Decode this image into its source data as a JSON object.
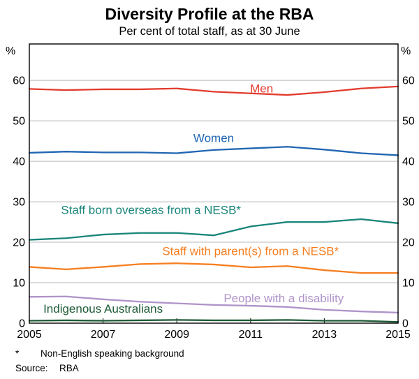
{
  "header": {
    "title": "Diversity Profile at the RBA",
    "subtitle": "Per cent of total staff, as at 30 June"
  },
  "footnotes": [
    {
      "marker": "*",
      "text": "Non-English speaking background"
    },
    {
      "marker": "Source:",
      "text": "RBA"
    }
  ],
  "chart_data": {
    "type": "line",
    "title": "Diversity Profile at the RBA",
    "subtitle": "Per cent of total staff, as at 30 June",
    "unit": "%",
    "grid": true,
    "legend_position": "inline-labels",
    "x": [
      2005,
      2006,
      2007,
      2008,
      2009,
      2010,
      2011,
      2012,
      2013,
      2014,
      2015
    ],
    "xlim": [
      2005,
      2015
    ],
    "xticks": [
      2005,
      2007,
      2009,
      2011,
      2013,
      2015
    ],
    "ylim": [
      0,
      69
    ],
    "yticks": [
      0,
      10,
      20,
      30,
      40,
      50,
      60
    ],
    "axis_color": "#000000",
    "grid_color": "#b8b8b8",
    "series": [
      {
        "name": "Men",
        "color": "#e23b2e",
        "values": [
          57.9,
          57.6,
          57.8,
          57.8,
          58.0,
          57.2,
          56.8,
          56.4,
          57.1,
          58.0,
          58.5
        ],
        "label": {
          "x": 2011.3,
          "y": 57.0
        }
      },
      {
        "name": "Women",
        "color": "#2066b2",
        "values": [
          42.1,
          42.4,
          42.2,
          42.2,
          42.0,
          42.8,
          43.2,
          43.6,
          42.9,
          42.0,
          41.5
        ],
        "label": {
          "x": 2010.0,
          "y": 44.8
        }
      },
      {
        "name": "Staff born overseas from a NESB*",
        "color": "#19857a",
        "values": [
          20.6,
          21.0,
          21.9,
          22.3,
          22.3,
          21.7,
          23.9,
          25.0,
          25.0,
          25.7,
          24.7
        ],
        "label": {
          "x": 2008.3,
          "y": 27.0
        }
      },
      {
        "name": "Staff with parent(s) from a NESB*",
        "color": "#f57e20",
        "values": [
          13.9,
          13.3,
          13.9,
          14.6,
          14.8,
          14.5,
          13.8,
          14.1,
          13.1,
          12.4,
          12.4
        ],
        "label": {
          "x": 2011.0,
          "y": 16.8
        }
      },
      {
        "name": "People with a disability",
        "color": "#af93c9",
        "values": [
          6.5,
          6.6,
          5.9,
          5.3,
          4.9,
          4.5,
          4.3,
          4.0,
          3.3,
          2.9,
          2.6
        ],
        "label": {
          "x": 2011.9,
          "y": 5.2
        }
      },
      {
        "name": "Indigenous Australians",
        "color": "#1e5b36",
        "values": [
          0.6,
          0.7,
          0.6,
          0.7,
          0.8,
          0.7,
          0.7,
          0.8,
          0.6,
          0.6,
          0.3
        ],
        "label": {
          "x": 2007.0,
          "y": 2.6
        }
      }
    ]
  }
}
